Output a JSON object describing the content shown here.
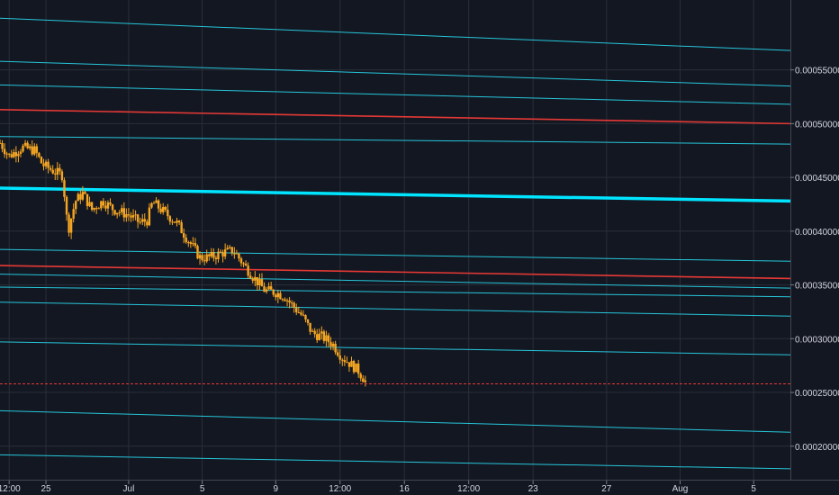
{
  "chart_data": {
    "type": "candlestick",
    "title": "",
    "xlabel": "",
    "ylabel": "",
    "ylim": [
      0.000168,
      0.000615
    ],
    "x_range_days": [
      0,
      43.0
    ],
    "x_ticks": [
      {
        "label": "12:00",
        "day": 0.5
      },
      {
        "label": "25",
        "day": 2.5
      },
      {
        "label": "Jul",
        "day": 7.0
      },
      {
        "label": "5",
        "day": 11.0
      },
      {
        "label": "9",
        "day": 15.0
      },
      {
        "label": "12:00",
        "day": 18.5
      },
      {
        "label": "16",
        "day": 22.0
      },
      {
        "label": "12:00",
        "day": 25.5
      },
      {
        "label": "23",
        "day": 29.0
      },
      {
        "label": "27",
        "day": 33.0
      },
      {
        "label": "Aug",
        "day": 37.0
      },
      {
        "label": "5",
        "day": 41.0
      }
    ],
    "y_ticks": [
      "0.00020000",
      "0.00025000",
      "0.00030000",
      "0.00035000",
      "0.00040000",
      "0.00045000",
      "0.00050000",
      "0.00055000"
    ],
    "price_path": [
      {
        "day": 0.0,
        "price": 0.000482
      },
      {
        "day": 0.5,
        "price": 0.00047
      },
      {
        "day": 1.2,
        "price": 0.000478
      },
      {
        "day": 1.9,
        "price": 0.000475
      },
      {
        "day": 2.3,
        "price": 0.000462
      },
      {
        "day": 3.0,
        "price": 0.000455
      },
      {
        "day": 3.4,
        "price": 0.000452
      },
      {
        "day": 3.7,
        "price": 0.0004
      },
      {
        "day": 4.1,
        "price": 0.000428
      },
      {
        "day": 4.5,
        "price": 0.000435
      },
      {
        "day": 5.0,
        "price": 0.00042
      },
      {
        "day": 5.6,
        "price": 0.000428
      },
      {
        "day": 6.2,
        "price": 0.00042
      },
      {
        "day": 7.0,
        "price": 0.000415
      },
      {
        "day": 7.6,
        "price": 0.000408
      },
      {
        "day": 8.0,
        "price": 0.00041
      },
      {
        "day": 8.3,
        "price": 0.000427
      },
      {
        "day": 8.9,
        "price": 0.000418
      },
      {
        "day": 9.6,
        "price": 0.000408
      },
      {
        "day": 10.3,
        "price": 0.00039
      },
      {
        "day": 10.9,
        "price": 0.000375
      },
      {
        "day": 11.5,
        "price": 0.000376
      },
      {
        "day": 12.1,
        "price": 0.00038
      },
      {
        "day": 12.7,
        "price": 0.000382
      },
      {
        "day": 13.3,
        "price": 0.000368
      },
      {
        "day": 13.8,
        "price": 0.000357
      },
      {
        "day": 14.4,
        "price": 0.000345
      },
      {
        "day": 15.0,
        "price": 0.000343
      },
      {
        "day": 15.5,
        "price": 0.000339
      },
      {
        "day": 15.9,
        "price": 0.000331
      },
      {
        "day": 16.4,
        "price": 0.000322
      },
      {
        "day": 17.0,
        "price": 0.000305
      },
      {
        "day": 17.5,
        "price": 0.000302
      },
      {
        "day": 18.1,
        "price": 0.000295
      },
      {
        "day": 18.6,
        "price": 0.000283
      },
      {
        "day": 19.1,
        "price": 0.000276
      },
      {
        "day": 19.5,
        "price": 0.00027
      },
      {
        "day": 19.9,
        "price": 0.00026
      }
    ],
    "current_price_line": 0.000258,
    "trend_lines": [
      {
        "y_start": 0.000598,
        "y_end": 0.000568,
        "color": "#26c6da",
        "kind": "thin"
      },
      {
        "y_start": 0.000558,
        "y_end": 0.000535,
        "color": "#26c6da",
        "kind": "thin"
      },
      {
        "y_start": 0.000536,
        "y_end": 0.000518,
        "color": "#26c6da",
        "kind": "thin"
      },
      {
        "y_start": 0.000513,
        "y_end": 0.0005,
        "color": "#e53935",
        "kind": "red"
      },
      {
        "y_start": 0.000488,
        "y_end": 0.000481,
        "color": "#26c6da",
        "kind": "thin"
      },
      {
        "y_start": 0.00044,
        "y_end": 0.000428,
        "color": "#00e5ff",
        "kind": "thick"
      },
      {
        "y_start": 0.000383,
        "y_end": 0.000372,
        "color": "#26c6da",
        "kind": "thin"
      },
      {
        "y_start": 0.000368,
        "y_end": 0.000356,
        "color": "#e53935",
        "kind": "red"
      },
      {
        "y_start": 0.00036,
        "y_end": 0.000347,
        "color": "#26c6da",
        "kind": "thin"
      },
      {
        "y_start": 0.000348,
        "y_end": 0.000339,
        "color": "#26c6da",
        "kind": "thin"
      },
      {
        "y_start": 0.000334,
        "y_end": 0.000321,
        "color": "#26c6da",
        "kind": "thin"
      },
      {
        "y_start": 0.000297,
        "y_end": 0.000285,
        "color": "#26c6da",
        "kind": "thin"
      },
      {
        "y_start": 0.000233,
        "y_end": 0.000213,
        "color": "#26c6da",
        "kind": "thin"
      },
      {
        "y_start": 0.000192,
        "y_end": 0.000179,
        "color": "#26c6da",
        "kind": "thin"
      }
    ],
    "grid": true,
    "legend": "none",
    "colors": {
      "background": "#131722",
      "grid": "#2a2e39",
      "candle": "#f5a623",
      "support_resistance": "#26c6da",
      "key_line": "#00e5ff",
      "red_line": "#e53935",
      "axis_text": "#d1d4dc"
    }
  }
}
